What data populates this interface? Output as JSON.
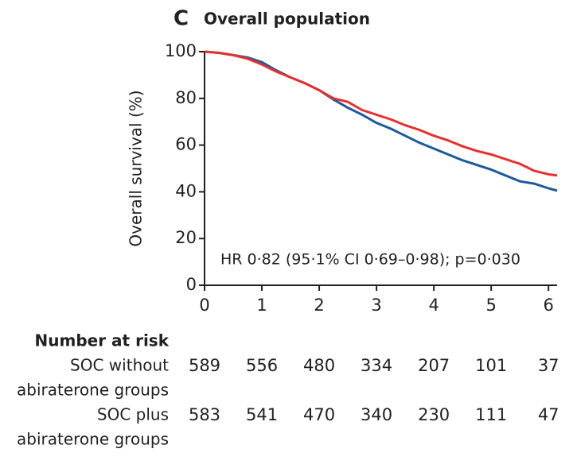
{
  "chart_data": {
    "type": "line",
    "panel_label": "C",
    "title": "Overall population",
    "y_label": "Overall survival (%)",
    "annotation": "HR 0·82 (95·1% CI 0·69–0·98); p=0·030",
    "x": [
      0,
      0.25,
      0.5,
      0.75,
      1,
      1.25,
      1.5,
      1.75,
      2,
      2.25,
      2.5,
      2.75,
      3,
      3.25,
      3.5,
      3.75,
      4,
      4.25,
      4.5,
      4.75,
      5,
      5.25,
      5.5,
      5.75,
      6,
      6.15
    ],
    "series": [
      {
        "color": "#1b5a9e",
        "values": [
          100,
          99.5,
          98.5,
          97.5,
          95.5,
          92,
          89,
          86.5,
          83.5,
          79.5,
          76,
          73,
          69.5,
          67,
          64,
          61,
          58.5,
          56,
          53.5,
          51.5,
          49.5,
          47,
          44.5,
          43.5,
          41.5,
          40.5
        ]
      },
      {
        "color": "#e8302a",
        "values": [
          100,
          99.5,
          98.5,
          97,
          94.5,
          91.5,
          89,
          86.5,
          83.5,
          80,
          78.5,
          75,
          73,
          71,
          68.5,
          66.5,
          64,
          62,
          59.5,
          57.5,
          56,
          54,
          52,
          49,
          47.5,
          47
        ]
      }
    ],
    "xlim": [
      0,
      6.15
    ],
    "ylim": [
      0,
      100
    ],
    "xticks": [
      0,
      1,
      2,
      3,
      4,
      5,
      6
    ],
    "yticks": [
      0,
      20,
      40,
      60,
      80,
      100
    ],
    "grid": false
  },
  "risk_table": {
    "title": "Number at risk",
    "rows": [
      {
        "label": [
          "SOC without",
          "abiraterone groups"
        ],
        "counts": [
          589,
          556,
          480,
          334,
          207,
          101,
          37
        ]
      },
      {
        "label": [
          "SOC plus",
          "abiraterone groups"
        ],
        "counts": [
          583,
          541,
          470,
          340,
          230,
          111,
          47
        ]
      }
    ]
  }
}
